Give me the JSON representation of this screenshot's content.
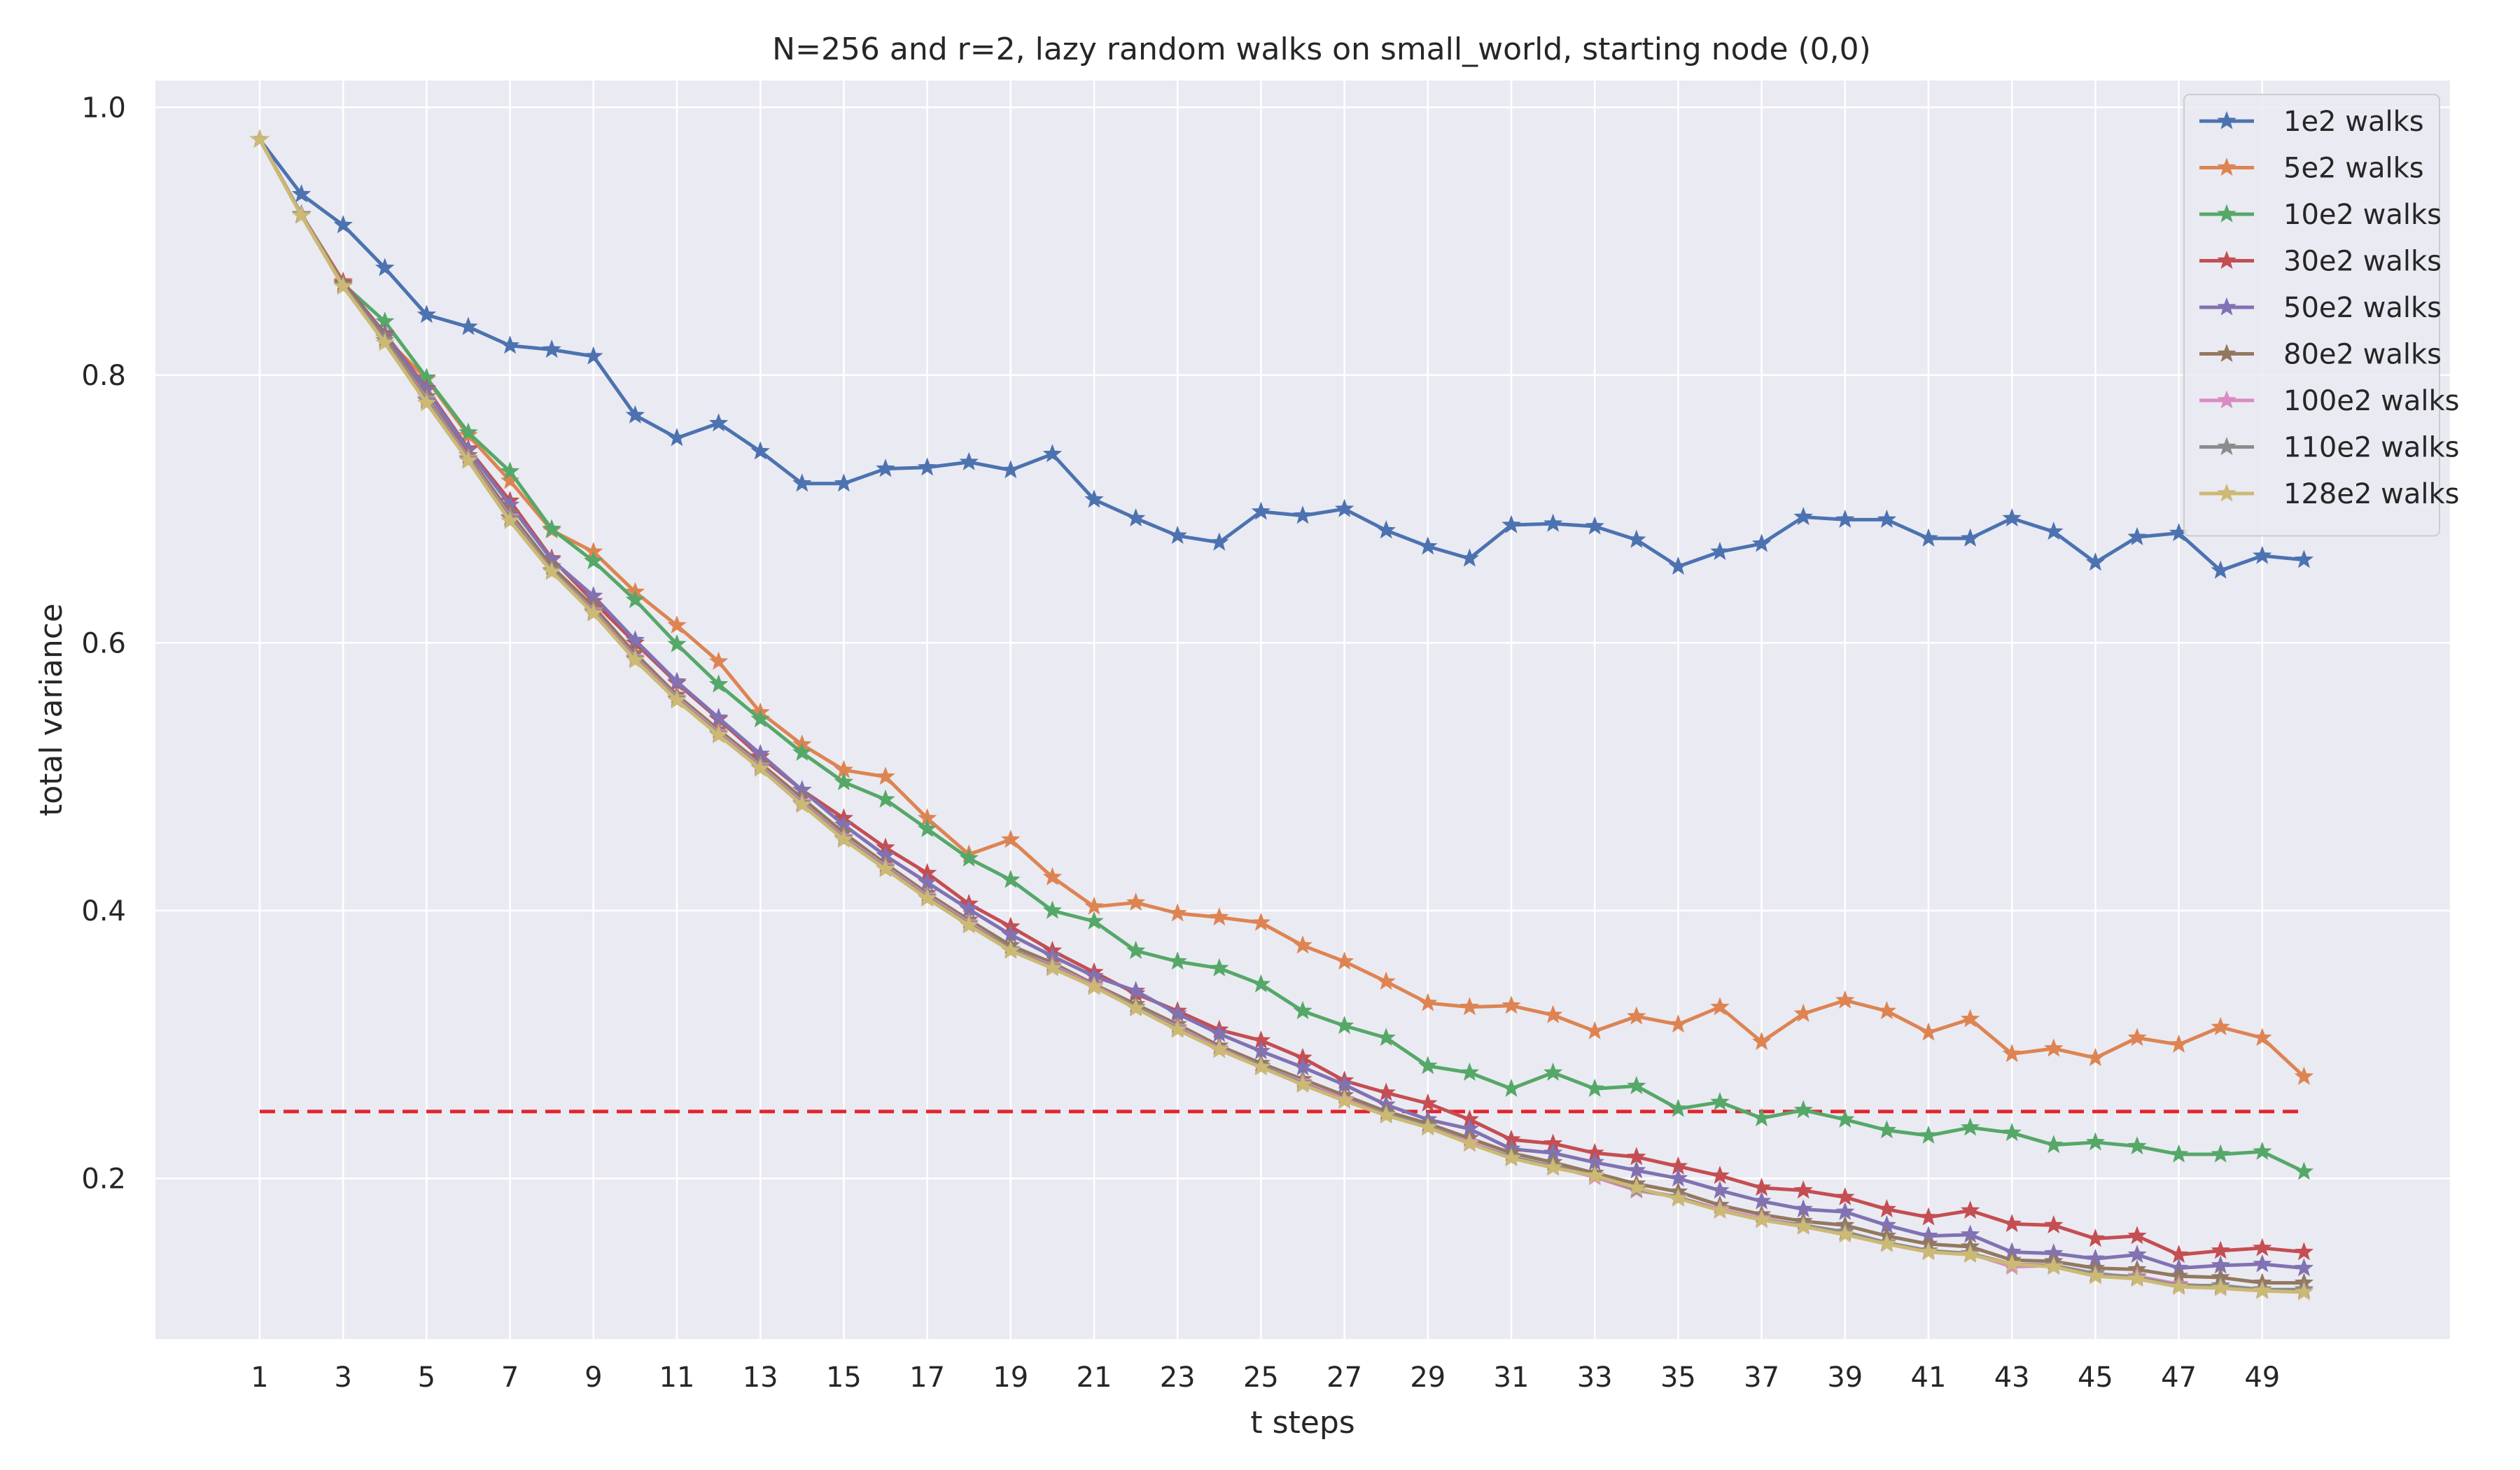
{
  "chart_data": {
    "type": "line",
    "title": "N=256 and r=2, lazy random walks on small_world, starting node (0,0)",
    "xlabel": "t steps",
    "ylabel": "total variance",
    "xlim": [
      -1.5,
      53.5
    ],
    "ylim": [
      0.08,
      1.02
    ],
    "xticks": [
      1,
      3,
      5,
      7,
      9,
      11,
      13,
      15,
      17,
      19,
      21,
      23,
      25,
      27,
      29,
      31,
      33,
      35,
      37,
      39,
      41,
      43,
      45,
      47,
      49
    ],
    "xtick_labels": [
      "1",
      "3",
      "5",
      "7",
      "9",
      "11",
      "13",
      "15",
      "17",
      "19",
      "21",
      "23",
      "25",
      "27",
      "29",
      "31",
      "33",
      "35",
      "37",
      "39",
      "41",
      "43",
      "45",
      "47",
      "49"
    ],
    "yticks": [
      0.2,
      0.4,
      0.6,
      0.8,
      1.0
    ],
    "ytick_labels": [
      "0.2",
      "0.4",
      "0.6",
      "0.8",
      "1.0"
    ],
    "grid": true,
    "background": "#eaeaf2",
    "legend_position": "top-right",
    "marker": "star",
    "x": [
      1,
      2,
      3,
      4,
      5,
      6,
      7,
      8,
      9,
      10,
      11,
      12,
      13,
      14,
      15,
      16,
      17,
      18,
      19,
      20,
      21,
      22,
      23,
      24,
      25,
      26,
      27,
      28,
      29,
      30,
      31,
      32,
      33,
      34,
      35,
      36,
      37,
      38,
      39,
      40,
      41,
      42,
      43,
      44,
      45,
      46,
      47,
      48,
      49,
      50
    ],
    "threshold": {
      "value": 0.25,
      "x_range": [
        1,
        50
      ],
      "color": "#e3242b",
      "style": "dashed"
    },
    "series": [
      {
        "name": "1e2 walks",
        "color": "#4c72b0",
        "values": [
          0.976,
          0.935,
          0.912,
          0.88,
          0.845,
          0.836,
          0.822,
          0.819,
          0.814,
          0.77,
          0.753,
          0.764,
          0.743,
          0.719,
          0.719,
          0.73,
          0.731,
          0.735,
          0.729,
          0.741,
          0.707,
          0.693,
          0.68,
          0.675,
          0.698,
          0.695,
          0.7,
          0.684,
          0.672,
          0.663,
          0.688,
          0.689,
          0.687,
          0.677,
          0.657,
          0.668,
          0.674,
          0.694,
          0.692,
          0.692,
          0.678,
          0.678,
          0.693,
          0.683,
          0.66,
          0.679,
          0.682,
          0.654,
          0.665,
          0.662
        ]
      },
      {
        "name": "5e2 walks",
        "color": "#dd8452",
        "values": [
          0.976,
          0.92,
          0.87,
          0.828,
          0.797,
          0.755,
          0.721,
          0.684,
          0.668,
          0.638,
          0.613,
          0.586,
          0.548,
          0.524,
          0.505,
          0.5,
          0.469,
          0.442,
          0.453,
          0.425,
          0.403,
          0.406,
          0.398,
          0.395,
          0.391,
          0.374,
          0.362,
          0.347,
          0.331,
          0.328,
          0.329,
          0.322,
          0.31,
          0.321,
          0.315,
          0.328,
          0.302,
          0.323,
          0.333,
          0.325,
          0.309,
          0.319,
          0.293,
          0.297,
          0.29,
          0.305,
          0.3,
          0.313,
          0.305,
          0.276
        ]
      },
      {
        "name": "10e2 walks",
        "color": "#55a868",
        "values": [
          0.976,
          0.92,
          0.868,
          0.84,
          0.798,
          0.757,
          0.728,
          0.685,
          0.661,
          0.632,
          0.599,
          0.569,
          0.543,
          0.518,
          0.496,
          0.483,
          0.461,
          0.439,
          0.423,
          0.4,
          0.392,
          0.37,
          0.362,
          0.357,
          0.345,
          0.325,
          0.314,
          0.305,
          0.284,
          0.279,
          0.267,
          0.279,
          0.267,
          0.269,
          0.252,
          0.257,
          0.245,
          0.251,
          0.244,
          0.236,
          0.232,
          0.238,
          0.234,
          0.225,
          0.227,
          0.224,
          0.218,
          0.218,
          0.22,
          0.205
        ]
      },
      {
        "name": "30e2 walks",
        "color": "#c44e52",
        "values": [
          0.976,
          0.92,
          0.869,
          0.831,
          0.79,
          0.745,
          0.706,
          0.663,
          0.631,
          0.6,
          0.57,
          0.543,
          0.515,
          0.49,
          0.469,
          0.447,
          0.428,
          0.405,
          0.388,
          0.37,
          0.354,
          0.338,
          0.325,
          0.311,
          0.303,
          0.29,
          0.273,
          0.264,
          0.256,
          0.244,
          0.229,
          0.226,
          0.219,
          0.216,
          0.209,
          0.202,
          0.193,
          0.191,
          0.186,
          0.177,
          0.171,
          0.176,
          0.166,
          0.165,
          0.155,
          0.157,
          0.143,
          0.146,
          0.148,
          0.145
        ]
      },
      {
        "name": "50e2 walks",
        "color": "#8172b3",
        "values": [
          0.976,
          0.92,
          0.868,
          0.83,
          0.789,
          0.744,
          0.703,
          0.662,
          0.635,
          0.602,
          0.571,
          0.544,
          0.517,
          0.49,
          0.464,
          0.441,
          0.421,
          0.401,
          0.382,
          0.366,
          0.351,
          0.34,
          0.323,
          0.308,
          0.295,
          0.283,
          0.27,
          0.255,
          0.244,
          0.237,
          0.222,
          0.219,
          0.212,
          0.206,
          0.2,
          0.191,
          0.183,
          0.177,
          0.175,
          0.165,
          0.157,
          0.158,
          0.145,
          0.144,
          0.14,
          0.143,
          0.133,
          0.135,
          0.136,
          0.133
        ]
      },
      {
        "name": "80e2 walks",
        "color": "#937860",
        "values": [
          0.976,
          0.92,
          0.868,
          0.828,
          0.784,
          0.74,
          0.697,
          0.657,
          0.627,
          0.592,
          0.561,
          0.535,
          0.51,
          0.484,
          0.458,
          0.435,
          0.413,
          0.393,
          0.374,
          0.361,
          0.345,
          0.33,
          0.315,
          0.299,
          0.286,
          0.274,
          0.262,
          0.25,
          0.241,
          0.23,
          0.219,
          0.212,
          0.204,
          0.196,
          0.19,
          0.18,
          0.173,
          0.168,
          0.165,
          0.157,
          0.151,
          0.149,
          0.139,
          0.138,
          0.133,
          0.132,
          0.127,
          0.126,
          0.122,
          0.122
        ]
      },
      {
        "name": "100e2 walks",
        "color": "#da8bc3",
        "values": [
          0.976,
          0.92,
          0.867,
          0.826,
          0.782,
          0.738,
          0.694,
          0.654,
          0.624,
          0.589,
          0.559,
          0.533,
          0.508,
          0.481,
          0.455,
          0.433,
          0.411,
          0.391,
          0.371,
          0.359,
          0.344,
          0.328,
          0.313,
          0.297,
          0.284,
          0.272,
          0.259,
          0.248,
          0.239,
          0.227,
          0.216,
          0.209,
          0.201,
          0.191,
          0.186,
          0.177,
          0.17,
          0.165,
          0.16,
          0.152,
          0.146,
          0.144,
          0.134,
          0.135,
          0.128,
          0.127,
          0.121,
          0.119,
          0.117,
          0.116
        ]
      },
      {
        "name": "110e2 walks",
        "color": "#8c8c8c",
        "values": [
          0.976,
          0.92,
          0.867,
          0.826,
          0.781,
          0.737,
          0.693,
          0.654,
          0.623,
          0.588,
          0.558,
          0.532,
          0.507,
          0.48,
          0.454,
          0.432,
          0.41,
          0.39,
          0.371,
          0.358,
          0.343,
          0.328,
          0.312,
          0.296,
          0.284,
          0.271,
          0.258,
          0.248,
          0.239,
          0.226,
          0.216,
          0.209,
          0.202,
          0.192,
          0.186,
          0.176,
          0.169,
          0.165,
          0.16,
          0.152,
          0.146,
          0.144,
          0.136,
          0.135,
          0.129,
          0.126,
          0.12,
          0.12,
          0.117,
          0.117
        ]
      },
      {
        "name": "128e2 walks",
        "color": "#ccb974",
        "values": [
          0.976,
          0.919,
          0.866,
          0.824,
          0.779,
          0.736,
          0.691,
          0.653,
          0.622,
          0.587,
          0.557,
          0.531,
          0.506,
          0.479,
          0.453,
          0.431,
          0.409,
          0.389,
          0.37,
          0.357,
          0.343,
          0.327,
          0.311,
          0.296,
          0.283,
          0.27,
          0.258,
          0.247,
          0.238,
          0.226,
          0.215,
          0.208,
          0.202,
          0.193,
          0.185,
          0.176,
          0.169,
          0.164,
          0.158,
          0.151,
          0.145,
          0.143,
          0.136,
          0.134,
          0.127,
          0.125,
          0.119,
          0.118,
          0.116,
          0.115
        ]
      }
    ]
  }
}
